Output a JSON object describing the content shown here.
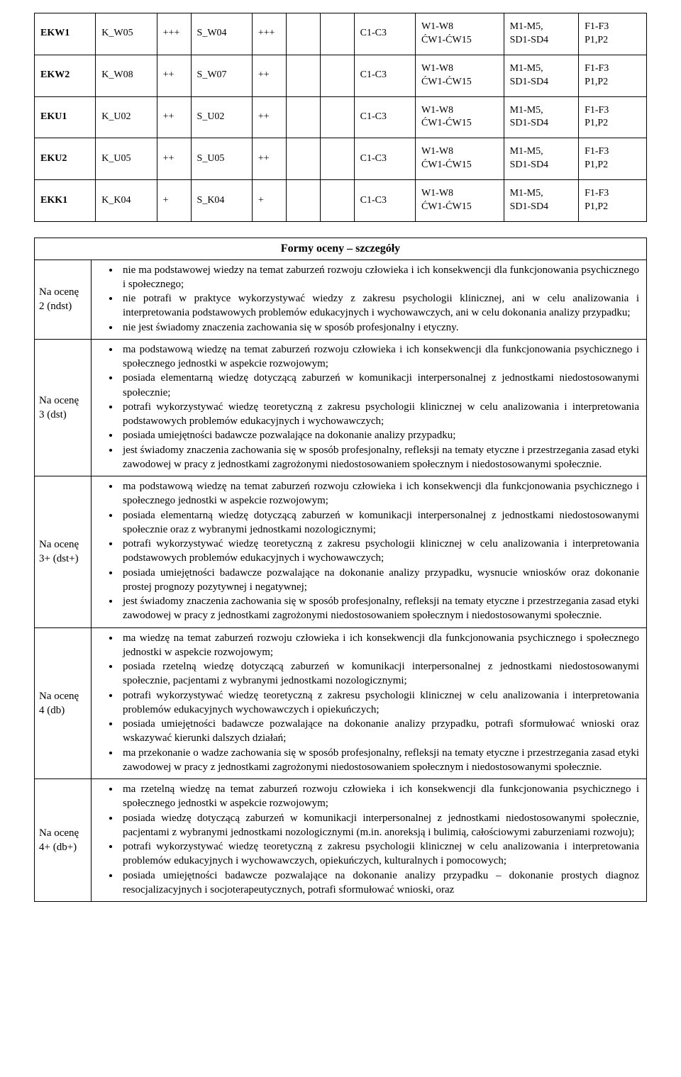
{
  "matrix": {
    "rows": [
      {
        "code": "EKW1",
        "k": "K_W05",
        "k_lvl": "+++",
        "s": "S_W04",
        "s_lvl": "+++",
        "e1": "",
        "e2": "",
        "c": "C1-C3",
        "w": "W1-W8\nĆW1-ĆW15",
        "m": "M1-M5,\nSD1-SD4",
        "f": "F1-F3\nP1,P2"
      },
      {
        "code": "EKW2",
        "k": "K_W08",
        "k_lvl": "++",
        "s": "S_W07",
        "s_lvl": "++",
        "e1": "",
        "e2": "",
        "c": "C1-C3",
        "w": "W1-W8\nĆW1-ĆW15",
        "m": "M1-M5,\nSD1-SD4",
        "f": "F1-F3\nP1,P2"
      },
      {
        "code": "EKU1",
        "k": "K_U02",
        "k_lvl": "++",
        "s": "S_U02",
        "s_lvl": "++",
        "e1": "",
        "e2": "",
        "c": "C1-C3",
        "w": "W1-W8\nĆW1-ĆW15",
        "m": "M1-M5,\nSD1-SD4",
        "f": "F1-F3\nP1,P2"
      },
      {
        "code": "EKU2",
        "k": "K_U05",
        "k_lvl": "++",
        "s": "S_U05",
        "s_lvl": "++",
        "e1": "",
        "e2": "",
        "c": "C1-C3",
        "w": "W1-W8\nĆW1-ĆW15",
        "m": "M1-M5,\nSD1-SD4",
        "f": "F1-F3\nP1,P2"
      },
      {
        "code": "EKK1",
        "k": "K_K04",
        "k_lvl": "+",
        "s": "S_K04",
        "s_lvl": "+",
        "e1": "",
        "e2": "",
        "c": "C1-C3",
        "w": "W1-W8\nĆW1-ĆW15",
        "m": "M1-M5,\nSD1-SD4",
        "f": "F1-F3\nP1,P2"
      }
    ]
  },
  "forms": {
    "title": "Formy oceny – szczegóły",
    "grades": [
      {
        "label": "Na ocenę 2 (ndst)",
        "items": [
          "nie ma podstawowej wiedzy na temat zaburzeń rozwoju człowieka i ich konsekwencji dla funkcjonowania psychicznego i społecznego;",
          "nie potrafi w praktyce wykorzystywać wiedzy z zakresu psychologii klinicznej, ani w celu analizowania i interpretowania podstawowych problemów edukacyjnych i wychowawczych, ani w celu dokonania analizy przypadku;",
          "nie jest świadomy znaczenia zachowania się w sposób profesjonalny i etyczny."
        ]
      },
      {
        "label": "Na ocenę 3 (dst)",
        "items": [
          "ma podstawową wiedzę na temat zaburzeń rozwoju człowieka i ich konsekwencji dla funkcjonowania psychicznego i społecznego jednostki w aspekcie rozwojowym;",
          "posiada elementarną wiedzę dotyczącą zaburzeń w komunikacji interpersonalnej z jednostkami niedostosowanymi społecznie;",
          "potrafi wykorzystywać wiedzę teoretyczną z zakresu psychologii klinicznej w celu analizowania i interpretowania podstawowych problemów edukacyjnych i wychowawczych;",
          "posiada umiejętności badawcze pozwalające na dokonanie analizy przypadku;",
          "jest świadomy znaczenia zachowania się w sposób profesjonalny, refleksji na tematy etyczne i przestrzegania zasad etyki zawodowej w pracy z jednostkami zagrożonymi niedostosowaniem społecznym i niedostosowanymi społecznie."
        ]
      },
      {
        "label": "Na ocenę 3+ (dst+)",
        "items": [
          "ma podstawową wiedzę na temat zaburzeń rozwoju człowieka i ich konsekwencji dla funkcjonowania psychicznego i społecznego jednostki w aspekcie rozwojowym;",
          "posiada elementarną wiedzę dotyczącą zaburzeń w komunikacji interpersonalnej z jednostkami niedostosowanymi społecznie oraz z wybranymi jednostkami nozologicznymi;",
          "potrafi wykorzystywać wiedzę teoretyczną z zakresu psychologii klinicznej w celu analizowania i interpretowania podstawowych problemów edukacyjnych i wychowawczych;",
          "posiada umiejętności badawcze pozwalające na dokonanie analizy przypadku, wysnucie wniosków oraz dokonanie prostej prognozy pozytywnej i negatywnej;",
          "jest świadomy znaczenia zachowania się w sposób profesjonalny, refleksji na tematy etyczne i przestrzegania zasad etyki zawodowej w pracy z jednostkami zagrożonymi niedostosowaniem społecznym i niedostosowanymi społecznie."
        ]
      },
      {
        "label": "Na ocenę 4 (db)",
        "items": [
          "ma wiedzę na temat zaburzeń rozwoju człowieka i ich konsekwencji dla funkcjonowania psychicznego i społecznego jednostki w aspekcie rozwojowym;",
          "posiada rzetelną wiedzę dotyczącą zaburzeń w komunikacji interpersonalnej z jednostkami niedostosowanymi społecznie, pacjentami z wybranymi jednostkami nozologicznymi;",
          "potrafi wykorzystywać wiedzę teoretyczną z zakresu psychologii klinicznej w celu analizowania i interpretowania problemów edukacyjnych wychowawczych i opiekuńczych;",
          "posiada umiejętności badawcze pozwalające na dokonanie analizy przypadku, potrafi sformułować wnioski oraz wskazywać kierunki dalszych działań;",
          "ma przekonanie o wadze zachowania się w sposób profesjonalny, refleksji na tematy etyczne i przestrzegania zasad etyki zawodowej w pracy z jednostkami zagrożonymi niedostosowaniem społecznym i niedostosowanymi społecznie."
        ]
      },
      {
        "label": "Na ocenę 4+ (db+)",
        "items": [
          "ma rzetelną wiedzę na temat zaburzeń rozwoju człowieka i ich konsekwencji dla funkcjonowania psychicznego i społecznego jednostki w aspekcie rozwojowym;",
          "posiada wiedzę dotyczącą zaburzeń w komunikacji interpersonalnej z jednostkami niedostosowanymi społecznie, pacjentami z wybranymi jednostkami nozologicznymi (m.in. anoreksją i bulimią, całościowymi zaburzeniami rozwoju);",
          "potrafi wykorzystywać wiedzę teoretyczną z zakresu psychologii klinicznej w celu analizowania i interpretowania problemów edukacyjnych i wychowawczych, opiekuńczych, kulturalnych i pomocowych;",
          "posiada umiejętności badawcze pozwalające na dokonanie analizy przypadku – dokonanie prostych diagnoz resocjalizacyjnych i socjoterapeutycznych, potrafi sformułować wnioski, oraz"
        ]
      }
    ]
  }
}
